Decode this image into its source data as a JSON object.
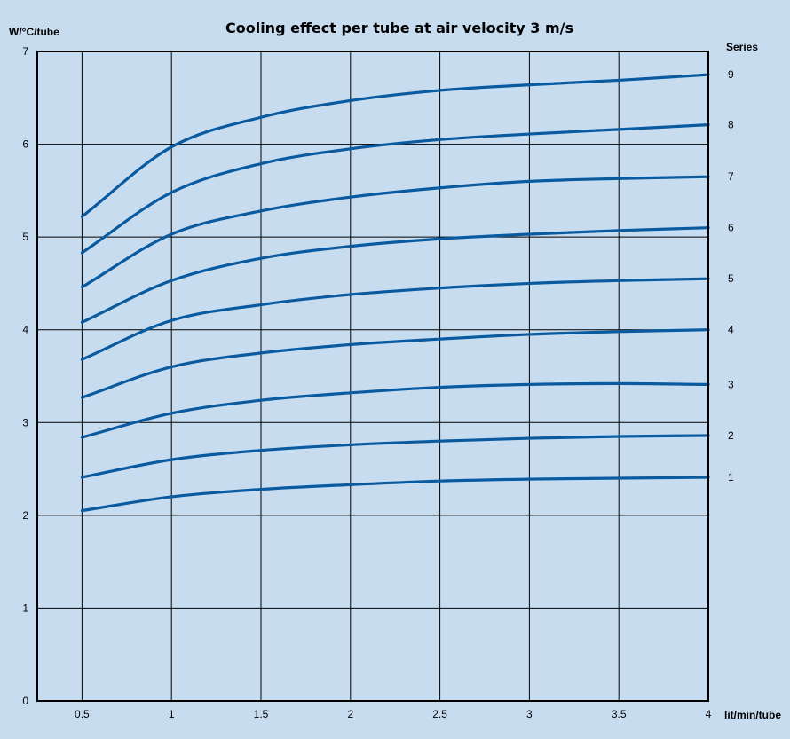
{
  "chart_data": {
    "type": "line",
    "title": "Cooling effect per tube at air velocity 3 m/s",
    "ylabel": "W/°C/tube",
    "xlabel": "lit/min/tube",
    "legend_title": "Series",
    "xlim": [
      0.25,
      4
    ],
    "ylim": [
      0,
      7
    ],
    "x_ticks": [
      "0.5",
      "1",
      "1.5",
      "2",
      "2.5",
      "3",
      "3.5",
      "4"
    ],
    "y_ticks": [
      "0",
      "1",
      "2",
      "3",
      "4",
      "5",
      "6",
      "7"
    ],
    "grid": true,
    "line_color": "#0a5aa0",
    "x": [
      0.5,
      1,
      1.5,
      2,
      2.5,
      3,
      3.5,
      4
    ],
    "series": [
      {
        "name": "1",
        "values": [
          2.05,
          2.2,
          2.28,
          2.33,
          2.37,
          2.39,
          2.4,
          2.41
        ]
      },
      {
        "name": "2",
        "values": [
          2.41,
          2.6,
          2.7,
          2.76,
          2.8,
          2.83,
          2.85,
          2.86
        ]
      },
      {
        "name": "3",
        "values": [
          2.84,
          3.1,
          3.24,
          3.32,
          3.38,
          3.41,
          3.42,
          3.41
        ]
      },
      {
        "name": "4",
        "values": [
          3.27,
          3.6,
          3.75,
          3.84,
          3.9,
          3.95,
          3.98,
          4.0
        ]
      },
      {
        "name": "5",
        "values": [
          3.68,
          4.1,
          4.27,
          4.38,
          4.45,
          4.5,
          4.53,
          4.55
        ]
      },
      {
        "name": "6",
        "values": [
          4.08,
          4.53,
          4.77,
          4.9,
          4.98,
          5.03,
          5.07,
          5.1
        ]
      },
      {
        "name": "7",
        "values": [
          4.46,
          5.03,
          5.28,
          5.43,
          5.53,
          5.6,
          5.63,
          5.65
        ]
      },
      {
        "name": "8",
        "values": [
          4.83,
          5.48,
          5.79,
          5.95,
          6.05,
          6.11,
          6.16,
          6.21
        ]
      },
      {
        "name": "9",
        "values": [
          5.22,
          5.97,
          6.29,
          6.47,
          6.58,
          6.64,
          6.69,
          6.75
        ]
      }
    ]
  }
}
